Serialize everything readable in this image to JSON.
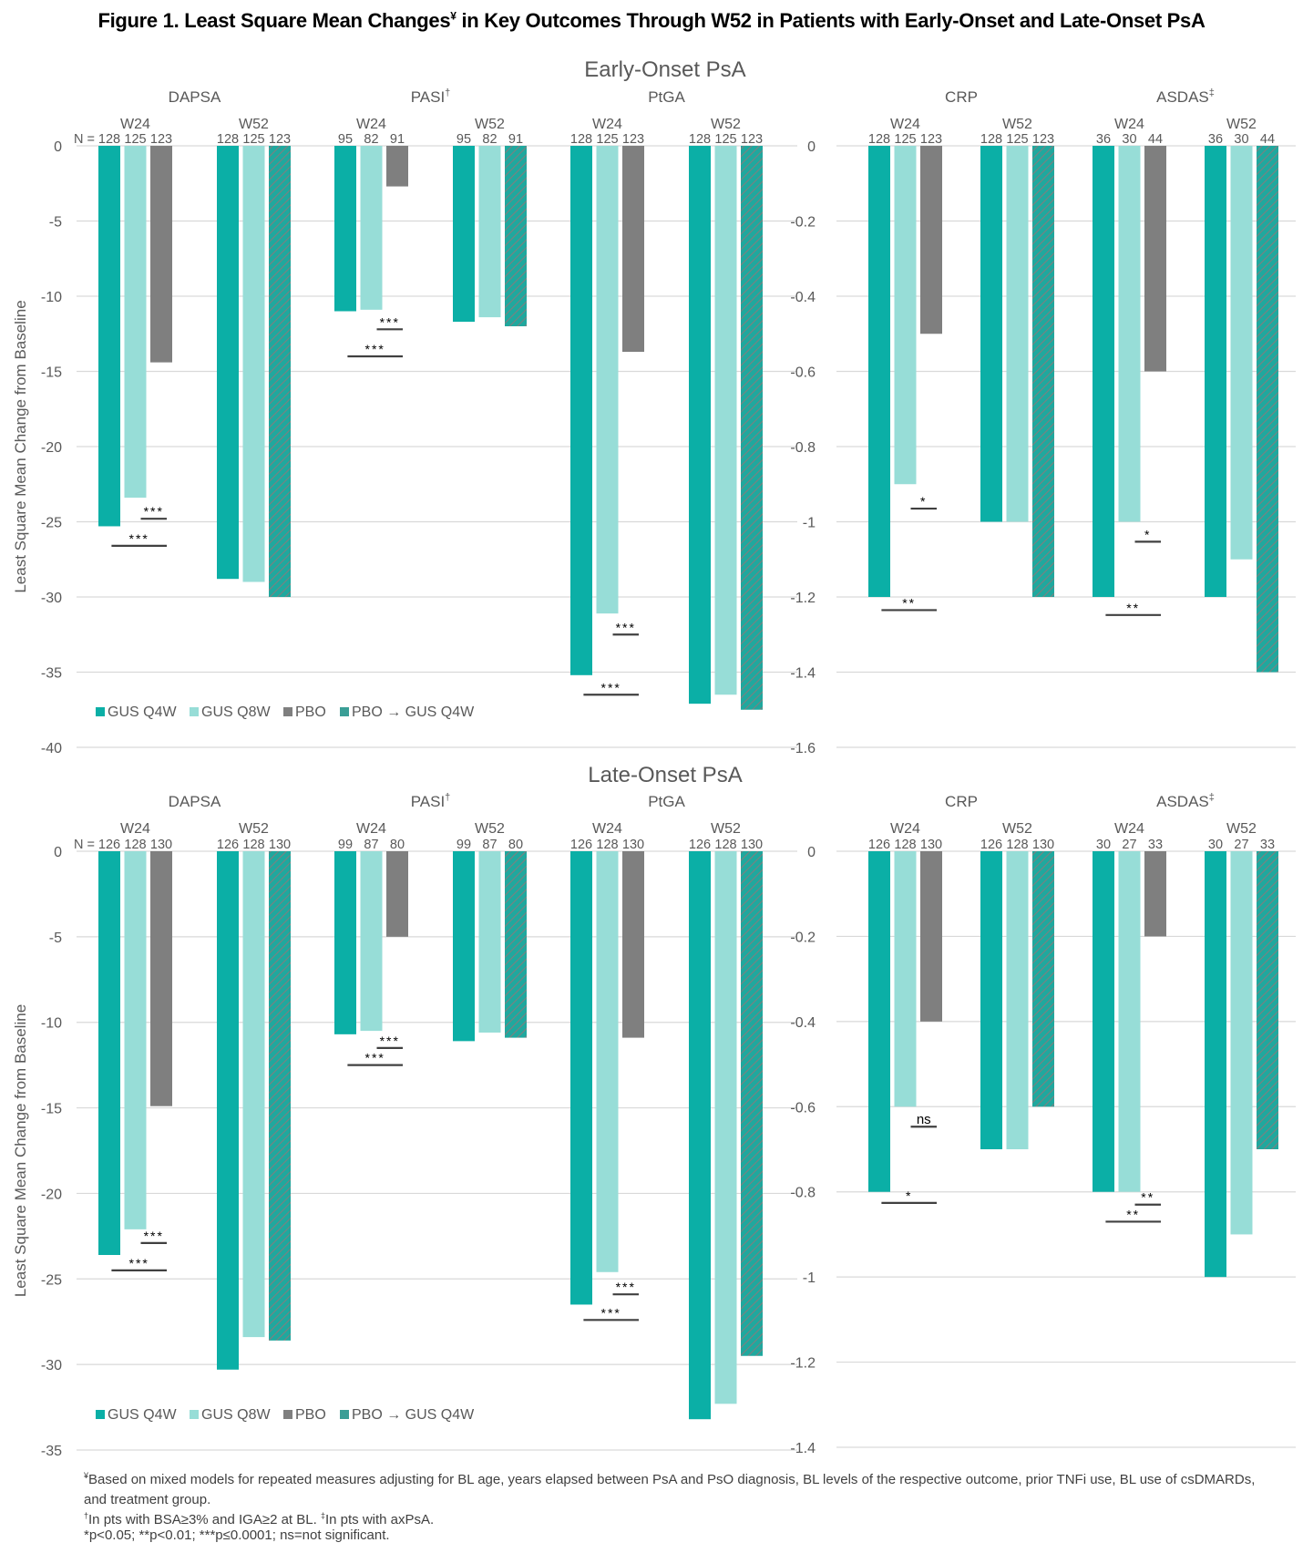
{
  "title": {
    "prefix": "Figure 1. Least Square Mean Changes",
    "mark": "¥",
    "suffix": " in Key Outcomes Through W52 in Patients with Early-Onset and Late-Onset PsA"
  },
  "colors": {
    "gus_q4w": "#0BAFA6",
    "gus_q8w": "#97DDD7",
    "pbo": "#7F7F7F",
    "pbo_gus": "#1FA89E",
    "hatch": "#7F7F7F",
    "grid": "#D9D9D9",
    "sig": "#404040"
  },
  "legend": [
    {
      "key": "gus_q4w",
      "label": "GUS Q4W"
    },
    {
      "key": "gus_q8w",
      "label": "GUS Q8W"
    },
    {
      "key": "pbo",
      "label": "PBO"
    },
    {
      "key": "pbo_gus",
      "label": "PBO → GUS Q4W"
    }
  ],
  "ylabel": "Least Square Mean Change from Baseline",
  "n_prefix": "N = ",
  "chart_data": [
    {
      "type": "bar",
      "panel": "early-left",
      "section_title": "Early-Onset PsA",
      "ylabel": "Least Square Mean Change from Baseline",
      "ylim": [
        -40,
        0
      ],
      "yticks": [
        0,
        -5,
        -10,
        -15,
        -20,
        -25,
        -30,
        -35,
        -40
      ],
      "grid": true,
      "legend": "bottom-left",
      "outcomes": [
        {
          "name": "DAPSA",
          "sup": "",
          "groups": [
            {
              "week": "W24",
              "n": [
                "128",
                "125",
                "123"
              ],
              "series": [
                "gus_q4w",
                "gus_q8w",
                "pbo"
              ],
              "values": [
                -25.3,
                -23.4,
                -14.4
              ],
              "sig": [
                {
                  "from": 1,
                  "to": 2,
                  "label": "***",
                  "y": -24.8
                },
                {
                  "from": 0,
                  "to": 2,
                  "label": "***",
                  "y": -26.6
                }
              ]
            },
            {
              "week": "W52",
              "n": [
                "128",
                "125",
                "123"
              ],
              "series": [
                "gus_q4w",
                "gus_q8w",
                "pbo_gus"
              ],
              "values": [
                -28.8,
                -29.0,
                -30.0
              ],
              "sig": []
            }
          ]
        },
        {
          "name": "PASI",
          "sup": "†",
          "groups": [
            {
              "week": "W24",
              "n": [
                "95",
                "82",
                "91"
              ],
              "series": [
                "gus_q4w",
                "gus_q8w",
                "pbo"
              ],
              "values": [
                -11.0,
                -10.9,
                -2.7
              ],
              "sig": [
                {
                  "from": 1,
                  "to": 2,
                  "label": "***",
                  "y": -12.2
                },
                {
                  "from": 0,
                  "to": 2,
                  "label": "***",
                  "y": -14.0
                }
              ]
            },
            {
              "week": "W52",
              "n": [
                "95",
                "82",
                "91"
              ],
              "series": [
                "gus_q4w",
                "gus_q8w",
                "pbo_gus"
              ],
              "values": [
                -11.7,
                -11.4,
                -12.0
              ],
              "sig": []
            }
          ]
        },
        {
          "name": "PtGA",
          "sup": "",
          "groups": [
            {
              "week": "W24",
              "n": [
                "128",
                "125",
                "123"
              ],
              "series": [
                "gus_q4w",
                "gus_q8w",
                "pbo"
              ],
              "values": [
                -35.2,
                -31.1,
                -13.7
              ],
              "sig": [
                {
                  "from": 1,
                  "to": 2,
                  "label": "***",
                  "y": -32.5
                },
                {
                  "from": 0,
                  "to": 2,
                  "label": "***",
                  "y": -36.5
                }
              ]
            },
            {
              "week": "W52",
              "n": [
                "128",
                "125",
                "123"
              ],
              "series": [
                "gus_q4w",
                "gus_q8w",
                "pbo_gus"
              ],
              "values": [
                -37.1,
                -36.5,
                -37.5
              ],
              "sig": []
            }
          ]
        }
      ]
    },
    {
      "type": "bar",
      "panel": "early-right",
      "section_title": "",
      "ylim": [
        -1.6,
        0
      ],
      "yticks": [
        0,
        -0.2,
        -0.4,
        -0.6,
        -0.8,
        -1,
        -1.2,
        -1.4,
        -1.6
      ],
      "grid": true,
      "outcomes": [
        {
          "name": "CRP",
          "sup": "",
          "groups": [
            {
              "week": "W24",
              "n": [
                "128",
                "125",
                "123"
              ],
              "series": [
                "gus_q4w",
                "gus_q8w",
                "pbo"
              ],
              "values": [
                -1.2,
                -0.9,
                -0.5
              ],
              "sig": [
                {
                  "from": 1,
                  "to": 2,
                  "label": "*",
                  "y": -0.965
                },
                {
                  "from": 0,
                  "to": 2,
                  "label": "**",
                  "y": -1.235
                }
              ]
            },
            {
              "week": "W52",
              "n": [
                "128",
                "125",
                "123"
              ],
              "series": [
                "gus_q4w",
                "gus_q8w",
                "pbo_gus"
              ],
              "values": [
                -1.0,
                -1.0,
                -1.2
              ],
              "sig": []
            }
          ]
        },
        {
          "name": "ASDAS",
          "sup": "‡",
          "groups": [
            {
              "week": "W24",
              "n": [
                "36",
                "30",
                "44"
              ],
              "series": [
                "gus_q4w",
                "gus_q8w",
                "pbo"
              ],
              "values": [
                -1.2,
                -1.0,
                -0.6
              ],
              "sig": [
                {
                  "from": 1,
                  "to": 2,
                  "label": "*",
                  "y": -1.053
                },
                {
                  "from": 0,
                  "to": 2,
                  "label": "**",
                  "y": -1.248
                }
              ]
            },
            {
              "week": "W52",
              "n": [
                "36",
                "30",
                "44"
              ],
              "series": [
                "gus_q4w",
                "gus_q8w",
                "pbo_gus"
              ],
              "values": [
                -1.2,
                -1.1,
                -1.4
              ],
              "sig": []
            }
          ]
        }
      ]
    },
    {
      "type": "bar",
      "panel": "late-left",
      "section_title": "Late-Onset PsA",
      "ylabel": "Least Square Mean Change from Baseline",
      "ylim": [
        -35,
        0
      ],
      "yticks": [
        0,
        -5,
        -10,
        -15,
        -20,
        -25,
        -30,
        -35
      ],
      "grid": true,
      "legend": "bottom-left",
      "outcomes": [
        {
          "name": "DAPSA",
          "sup": "",
          "groups": [
            {
              "week": "W24",
              "n": [
                "126",
                "128",
                "130"
              ],
              "series": [
                "gus_q4w",
                "gus_q8w",
                "pbo"
              ],
              "values": [
                -23.6,
                -22.1,
                -14.9
              ],
              "sig": [
                {
                  "from": 1,
                  "to": 2,
                  "label": "***",
                  "y": -22.9
                },
                {
                  "from": 0,
                  "to": 2,
                  "label": "***",
                  "y": -24.5
                }
              ]
            },
            {
              "week": "W52",
              "n": [
                "126",
                "128",
                "130"
              ],
              "series": [
                "gus_q4w",
                "gus_q8w",
                "pbo_gus"
              ],
              "values": [
                -30.3,
                -28.4,
                -28.6
              ],
              "sig": []
            }
          ]
        },
        {
          "name": "PASI",
          "sup": "†",
          "groups": [
            {
              "week": "W24",
              "n": [
                "99",
                "87",
                "80"
              ],
              "series": [
                "gus_q4w",
                "gus_q8w",
                "pbo"
              ],
              "values": [
                -10.7,
                -10.5,
                -5.0
              ],
              "sig": [
                {
                  "from": 1,
                  "to": 2,
                  "label": "***",
                  "y": -11.5
                },
                {
                  "from": 0,
                  "to": 2,
                  "label": "***",
                  "y": -12.5
                }
              ]
            },
            {
              "week": "W52",
              "n": [
                "99",
                "87",
                "80"
              ],
              "series": [
                "gus_q4w",
                "gus_q8w",
                "pbo_gus"
              ],
              "values": [
                -11.1,
                -10.6,
                -10.9
              ],
              "sig": []
            }
          ]
        },
        {
          "name": "PtGA",
          "sup": "",
          "groups": [
            {
              "week": "W24",
              "n": [
                "126",
                "128",
                "130"
              ],
              "series": [
                "gus_q4w",
                "gus_q8w",
                "pbo"
              ],
              "values": [
                -26.5,
                -24.6,
                -10.9
              ],
              "sig": [
                {
                  "from": 1,
                  "to": 2,
                  "label": "***",
                  "y": -25.9
                },
                {
                  "from": 0,
                  "to": 2,
                  "label": "***",
                  "y": -27.4
                }
              ]
            },
            {
              "week": "W52",
              "n": [
                "126",
                "128",
                "130"
              ],
              "series": [
                "gus_q4w",
                "gus_q8w",
                "pbo_gus"
              ],
              "values": [
                -33.2,
                -32.3,
                -29.5
              ],
              "sig": []
            }
          ]
        }
      ]
    },
    {
      "type": "bar",
      "panel": "late-right",
      "section_title": "",
      "ylim": [
        -1.4,
        0
      ],
      "yticks": [
        0,
        -0.2,
        -0.4,
        -0.6,
        -0.8,
        -1,
        -1.2,
        -1.4
      ],
      "grid": true,
      "outcomes": [
        {
          "name": "CRP",
          "sup": "",
          "groups": [
            {
              "week": "W24",
              "n": [
                "126",
                "128",
                "130"
              ],
              "series": [
                "gus_q4w",
                "gus_q8w",
                "pbo"
              ],
              "values": [
                -0.8,
                -0.6,
                -0.4
              ],
              "sig": [
                {
                  "from": 1,
                  "to": 2,
                  "label": "ns",
                  "y": -0.647
                },
                {
                  "from": 0,
                  "to": 2,
                  "label": "*",
                  "y": -0.826
                }
              ]
            },
            {
              "week": "W52",
              "n": [
                "126",
                "128",
                "130"
              ],
              "series": [
                "gus_q4w",
                "gus_q8w",
                "pbo_gus"
              ],
              "values": [
                -0.7,
                -0.7,
                -0.6
              ],
              "sig": []
            }
          ]
        },
        {
          "name": "ASDAS",
          "sup": "‡",
          "groups": [
            {
              "week": "W24",
              "n": [
                "30",
                "27",
                "33"
              ],
              "series": [
                "gus_q4w",
                "gus_q8w",
                "pbo"
              ],
              "values": [
                -0.8,
                -0.8,
                -0.2
              ],
              "sig": [
                {
                  "from": 1,
                  "to": 2,
                  "label": "**",
                  "y": -0.83
                },
                {
                  "from": 0,
                  "to": 2,
                  "label": "**",
                  "y": -0.87
                }
              ]
            },
            {
              "week": "W52",
              "n": [
                "30",
                "27",
                "33"
              ],
              "series": [
                "gus_q4w",
                "gus_q8w",
                "pbo_gus"
              ],
              "values": [
                -1.0,
                -0.9,
                -0.7
              ],
              "sig": []
            }
          ]
        }
      ]
    }
  ],
  "footnotes": [
    {
      "mark": "¥",
      "text": "Based on mixed models for repeated measures adjusting for BL age, years elapsed between PsA and PsO diagnosis, BL levels of the respective outcome, prior TNFi use, BL use of csDMARDs, and treatment group."
    },
    {
      "mark": "†",
      "text": "In pts with BSA≥3% and IGA≥2 at BL. ",
      "mark2": "‡",
      "text2": "In pts with axPsA."
    },
    {
      "mark": "",
      "text": "*p<0.05; **p<0.01; ***p≤0.0001; ns=not significant."
    }
  ]
}
